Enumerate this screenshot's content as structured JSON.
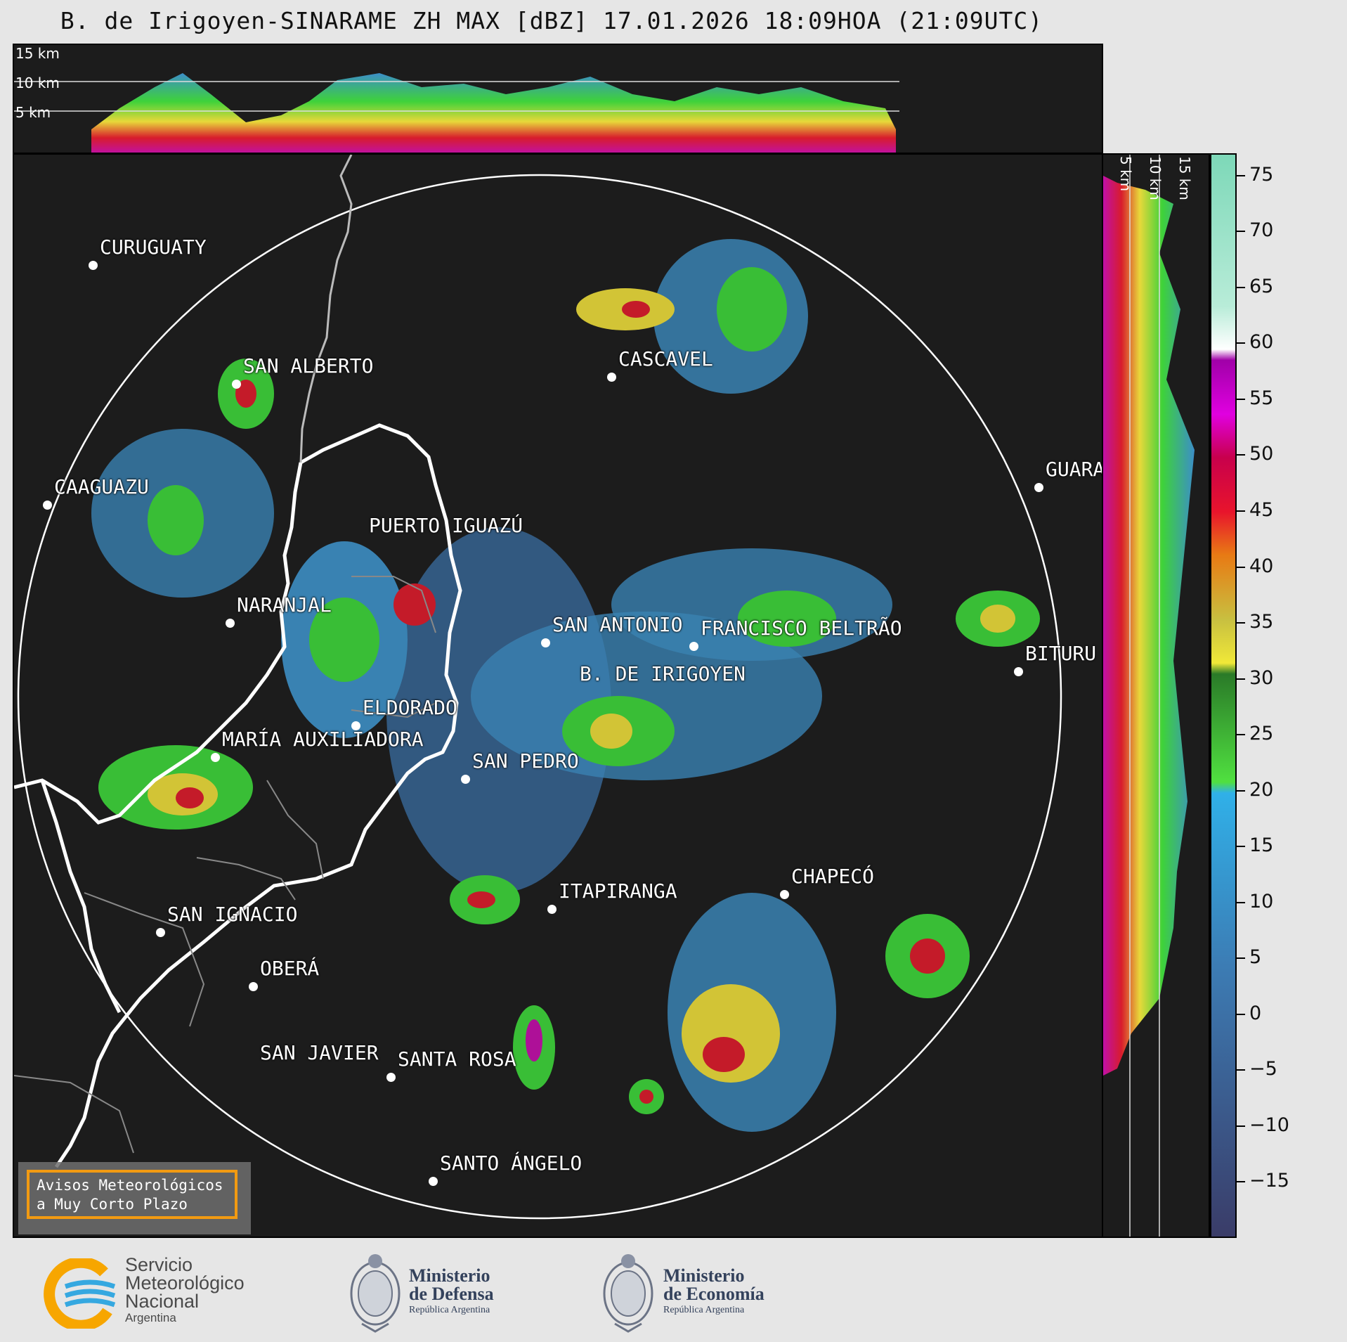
{
  "title": "B. de Irigoyen-SINARAME ZH MAX [dBZ] 17.01.2026 18:09HOA (21:09UTC)",
  "top_panel": {
    "labels": [
      "15 km",
      "10 km",
      "5 km"
    ]
  },
  "side_panel": {
    "labels": [
      "5 km",
      "10 km",
      "15 km"
    ]
  },
  "cities": [
    {
      "name": "CURUGUATY"
    },
    {
      "name": "SAN ALBERTO"
    },
    {
      "name": "CASCAVEL"
    },
    {
      "name": "CAAGUAZU"
    },
    {
      "name": "GUARA"
    },
    {
      "name": "PUERTO IGUAZÚ"
    },
    {
      "name": "NARANJAL"
    },
    {
      "name": "SAN ANTONIO"
    },
    {
      "name": "FRANCISCO BELTRÃO"
    },
    {
      "name": "BITURU"
    },
    {
      "name": "B. DE IRIGOYEN"
    },
    {
      "name": "ELDORADO"
    },
    {
      "name": "MARÍA AUXILIADORA"
    },
    {
      "name": "SAN PEDRO"
    },
    {
      "name": "CHAPECÓ"
    },
    {
      "name": "ITAPIRANGA"
    },
    {
      "name": "SAN IGNACIO"
    },
    {
      "name": "OBERÁ"
    },
    {
      "name": "SAN JAVIER"
    },
    {
      "name": "SANTA ROSA"
    },
    {
      "name": "SANTO ÁNGELO"
    }
  ],
  "warning_box": {
    "line1": "Avisos Meteorológicos",
    "line2": "a Muy Corto Plazo"
  },
  "colorbar": {
    "ticks": [
      "75",
      "70",
      "65",
      "60",
      "55",
      "50",
      "45",
      "40",
      "35",
      "30",
      "25",
      "20",
      "15",
      "10",
      "5",
      "0",
      "−5",
      "−10",
      "−15"
    ],
    "range": [
      -20,
      77
    ]
  },
  "footer": {
    "smn": {
      "line1": "Servicio",
      "line2": "Meteorológico",
      "line3": "Nacional",
      "line4": "Argentina"
    },
    "defensa": {
      "line1": "Ministerio",
      "line2": "de Defensa",
      "line3": "República Argentina"
    },
    "economia": {
      "line1": "Ministerio",
      "line2": "de Economía",
      "line3": "República Argentina"
    }
  },
  "colors": {
    "background": "#1c1c1c",
    "border_white": "#ffffff",
    "warning_orange": "#f29a12",
    "logo_blue": "#34425c",
    "smn_yellow": "#f7a600",
    "smn_blue": "#35a8e0"
  }
}
